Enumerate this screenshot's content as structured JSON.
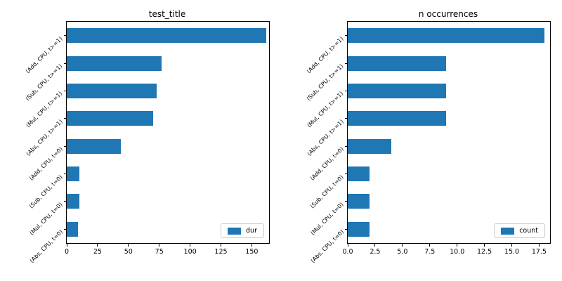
{
  "figure": {
    "background_color": "#ffffff",
    "bar_color": "#1f77b4",
    "axis_color": "#000000",
    "text_color": "#000000",
    "legend_border_color": "#cccccc"
  },
  "chart_data": [
    {
      "type": "bar",
      "orientation": "horizontal",
      "title": "test_title",
      "grid": false,
      "legend": {
        "label": "dur",
        "position": "lower right",
        "swatch_color": "#1f77b4"
      },
      "categories": [
        "(Add, CPU, t>=1)",
        "(Sub, CPU, t>=1)",
        "(Mul, CPU, t>=1)",
        "(Abs, CPU, t>=1)",
        "(Add, CPU, t=0)",
        "(Sub, CPU, t=0)",
        "(Mul, CPU, t=0)",
        "(Abs, CPU, t=0)"
      ],
      "values": [
        162,
        77,
        73,
        70,
        44,
        10,
        10,
        9
      ],
      "xlabel": "",
      "ylabel": "",
      "xlim": [
        0,
        164
      ],
      "xticks": [
        {
          "label": "0",
          "value": 0
        },
        {
          "label": "25",
          "value": 25
        },
        {
          "label": "50",
          "value": 50
        },
        {
          "label": "75",
          "value": 75
        },
        {
          "label": "100",
          "value": 100
        },
        {
          "label": "125",
          "value": 125
        },
        {
          "label": "150",
          "value": 150
        }
      ]
    },
    {
      "type": "bar",
      "orientation": "horizontal",
      "title": "n occurrences",
      "grid": false,
      "legend": {
        "label": "count",
        "position": "lower right",
        "swatch_color": "#1f77b4"
      },
      "categories": [
        "(Add, CPU, t>=1)",
        "(Sub, CPU, t>=1)",
        "(Mul, CPU, t>=1)",
        "(Abs, CPU, t>=1)",
        "(Add, CPU, t=0)",
        "(Sub, CPU, t=0)",
        "(Mul, CPU, t=0)",
        "(Abs, CPU, t=0)"
      ],
      "values": [
        18,
        9,
        9,
        9,
        4,
        2,
        2,
        2
      ],
      "xlabel": "",
      "ylabel": "",
      "xlim": [
        0,
        18.5
      ],
      "xticks": [
        {
          "label": "0.0",
          "value": 0
        },
        {
          "label": "2.5",
          "value": 2.5
        },
        {
          "label": "5.0",
          "value": 5
        },
        {
          "label": "7.5",
          "value": 7.5
        },
        {
          "label": "10.0",
          "value": 10
        },
        {
          "label": "12.5",
          "value": 12.5
        },
        {
          "label": "15.0",
          "value": 15
        },
        {
          "label": "17.5",
          "value": 17.5
        }
      ]
    }
  ]
}
